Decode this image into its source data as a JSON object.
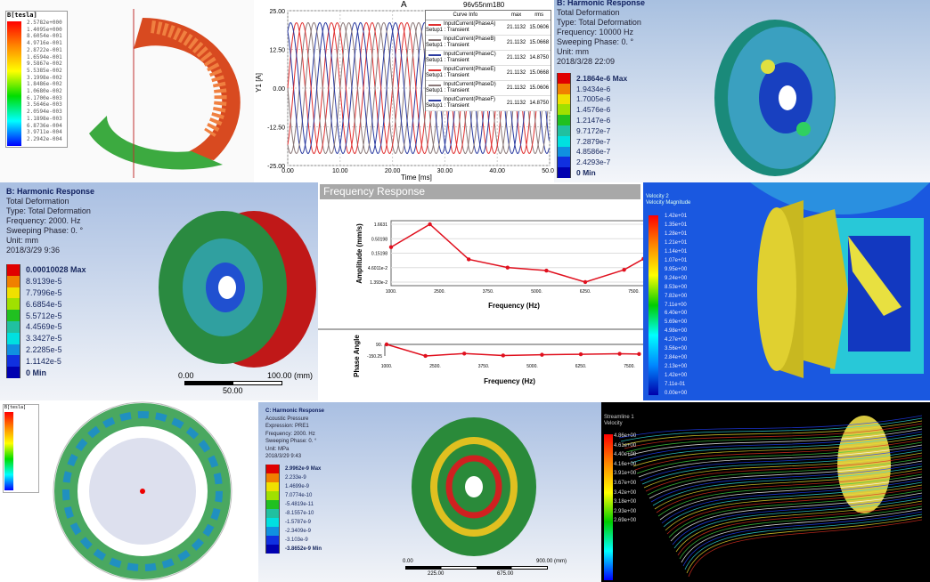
{
  "panel_magnet": {
    "legend_title": "B[tesla]",
    "legend_values": [
      "2.5782e+000",
      "1.4095e+000",
      "8.6054e-001",
      "4.9716e-001",
      "2.8722e-001",
      "1.6594e-001",
      "9.5867e-002",
      "5.5385e-002",
      "3.1998e-002",
      "1.8486e-002",
      "1.0680e-002",
      "6.1700e-003",
      "3.5646e-003",
      "2.0594e-003",
      "1.1898e-003",
      "6.8736e-004",
      "3.9711e-004",
      "2.2942e-004"
    ]
  },
  "current_chart": {
    "title": "A",
    "corner_label": "96v55nm180",
    "ylabel": "Y1 [A]",
    "xlabel": "Time [ms]",
    "legend_header": {
      "name": "Curve Info",
      "max": "max",
      "rms": "rms"
    },
    "y_ticks": [
      "25.00",
      "12.50",
      "0.00",
      "-12.50",
      "-25.00"
    ],
    "x_ticks": [
      "0.00",
      "10.00",
      "20.00",
      "30.00",
      "40.00",
      "50.00"
    ],
    "legend": [
      {
        "name": "InputCurrent(PhaseA)",
        "setup": "Setup1 : Transient",
        "max": "21.1132",
        "rms": "15.0606",
        "color": "#e03030"
      },
      {
        "name": "InputCurrent(PhaseB)",
        "setup": "Setup1 : Transient",
        "max": "21.1132",
        "rms": "15.0668",
        "color": "#8a7878"
      },
      {
        "name": "InputCurrent(PhaseC)",
        "setup": "Setup1 : Transient",
        "max": "21.1132",
        "rms": "14.8750",
        "color": "#2a3aa0"
      },
      {
        "name": "InputCurrent(PhaseE)",
        "setup": "Setup1 : Transient",
        "max": "21.1132",
        "rms": "15.0668",
        "color": "#e03030"
      },
      {
        "name": "InputCurrent(PhaseD)",
        "setup": "Setup1 : Transient",
        "max": "21.1132",
        "rms": "15.0606",
        "color": "#8a7878"
      },
      {
        "name": "InputCurrent(PhaseF)",
        "setup": "Setup1 : Transient",
        "max": "21.1132",
        "rms": "14.8750",
        "color": "#2a3aa0"
      }
    ]
  },
  "chart_data": [
    {
      "type": "line",
      "title": "A",
      "xlabel": "Time [ms]",
      "ylabel": "Y1 [A]",
      "xlim": [
        0,
        50
      ],
      "ylim": [
        -25,
        25
      ],
      "grid": true,
      "legend_placement": "top-right",
      "series": [
        {
          "name": "InputCurrent(PhaseA)",
          "amplitude": 21.1132,
          "phase_deg": 0
        },
        {
          "name": "InputCurrent(PhaseB)",
          "amplitude": 21.1132,
          "phase_deg": -120
        },
        {
          "name": "InputCurrent(PhaseC)",
          "amplitude": 21.1132,
          "phase_deg": -240
        },
        {
          "name": "InputCurrent(PhaseE)",
          "amplitude": 21.1132,
          "phase_deg": -60
        },
        {
          "name": "InputCurrent(PhaseD)",
          "amplitude": 21.1132,
          "phase_deg": -180
        },
        {
          "name": "InputCurrent(PhaseF)",
          "amplitude": 21.1132,
          "phase_deg": -300
        }
      ],
      "period_ms": 6.67
    },
    {
      "type": "line",
      "title": "Frequency Response",
      "xlabel": "Frequency (Hz)",
      "ylabel": "Amplitude (mm/s)",
      "y_scale": "log",
      "x_ticks": [
        "1000.",
        "2500.",
        "3750.",
        "5000.",
        "6250.",
        "7500."
      ],
      "y_ticks": [
        "1.6631",
        "0.50198",
        "0.15198",
        "4.6011e-2",
        "1.393e-2"
      ],
      "grid": true,
      "x": [
        1000,
        2000,
        3000,
        4000,
        5000,
        6000,
        7000,
        7500
      ],
      "values": [
        0.3,
        1.6631,
        0.12,
        0.065,
        0.052,
        0.022,
        0.055,
        0.125
      ],
      "color": "#e0101e"
    },
    {
      "type": "line",
      "xlabel": "Frequency (Hz)",
      "ylabel": "Phase Angle",
      "x_ticks": [
        "1000.",
        "2500.",
        "3750.",
        "5000.",
        "6250.",
        "7500."
      ],
      "y_ticks": [
        "90.",
        "-150.25"
      ],
      "x": [
        1000,
        2000,
        3000,
        4000,
        5000,
        6000,
        7000,
        7500
      ],
      "values": [
        90,
        -150,
        -100,
        -140,
        -125,
        -115,
        -105,
        -110
      ],
      "color": "#e0101e"
    }
  ],
  "panel_wheel_top": {
    "lines": [
      "B: Harmonic Response",
      "Total Deformation",
      "Type: Total Deformation",
      "Frequency: 10000 Hz",
      "Sweeping Phase: 0. °",
      "Unit: mm",
      "2018/3/28 22:09"
    ],
    "legend": [
      "2.1864e-6 Max",
      "1.9434e-6",
      "1.7005e-6",
      "1.4576e-6",
      "1.2147e-6",
      "9.7172e-7",
      "7.2879e-7",
      "4.8586e-7",
      "2.4293e-7",
      "0 Min"
    ]
  },
  "panel_wheel_mid": {
    "lines": [
      "B: Harmonic Response",
      "Total Deformation",
      "Type: Total Deformation",
      "Frequency: 2000. Hz",
      "Sweeping Phase: 0. °",
      "Unit: mm",
      "2018/3/29 9:36"
    ],
    "legend": [
      "0.00010028 Max",
      "8.9139e-5",
      "7.7996e-5",
      "6.6854e-5",
      "5.5712e-5",
      "4.4569e-5",
      "3.3427e-5",
      "2.2285e-5",
      "1.1142e-5",
      "0 Min"
    ],
    "scale": {
      "left": "0.00",
      "right": "100.00 (mm)",
      "mid": "50.00"
    }
  },
  "frequency_panel": {
    "title": "Frequency Response"
  },
  "panel_cfd": {
    "title": "Velocity 2",
    "subtitle": "Velocity Magnitude",
    "legend": [
      "1.42e+01",
      "1.35e+01",
      "1.28e+01",
      "1.21e+01",
      "1.14e+01",
      "1.07e+01",
      "9.95e+00",
      "9.24e+00",
      "8.53e+00",
      "7.82e+00",
      "7.11e+00",
      "6.40e+00",
      "5.69e+00",
      "4.98e+00",
      "4.27e+00",
      "3.56e+00",
      "2.84e+00",
      "2.13e+00",
      "1.42e+00",
      "7.11e-01",
      "0.00e+00"
    ]
  },
  "panel_ring": {
    "legend_title": "B[tesla]"
  },
  "panel_disc": {
    "lines": [
      "C: Harmonic Response",
      "Acoustic Pressure",
      "Expression: PRE1",
      "Frequency: 2000. Hz",
      "Sweeping Phase: 0. °",
      "Unit: MPa",
      "2018/3/29 9:43"
    ],
    "legend": [
      "2.9962e-9 Max",
      "2.233e-9",
      "1.4699e-9",
      "7.0774e-10",
      "-5.4819e-11",
      "-8.1557e-10",
      "-1.5787e-9",
      "-2.3409e-9",
      "-3.103e-9",
      "-3.8652e-9 Min"
    ],
    "scale": {
      "left": "0.00",
      "right": "900.00 (mm)",
      "a": "225.00",
      "b": "675.00"
    }
  },
  "panel_stream": {
    "title": "Streamline 1",
    "subtitle": "Velocity",
    "legend": [
      "4.86e+00",
      "4.61e+00",
      "4.40e+00",
      "4.16e+00",
      "3.91e+00",
      "3.67e+00",
      "3.42e+00",
      "3.18e+00",
      "2.93e+00",
      "2.69e+00"
    ]
  },
  "legend_colors": [
    "#e00000",
    "#f08000",
    "#f0e000",
    "#a0e000",
    "#20c020",
    "#20c0a0",
    "#00e0e0",
    "#1090e0",
    "#1030e0",
    "#0000b0"
  ]
}
